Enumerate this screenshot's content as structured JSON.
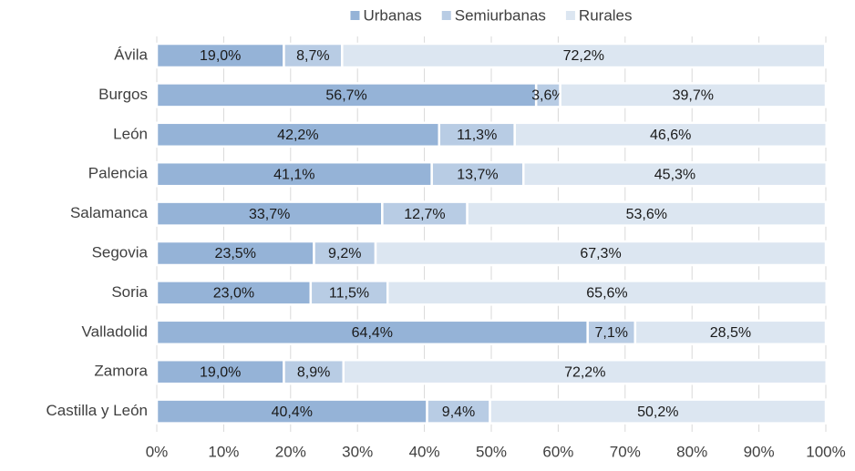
{
  "chart_data": {
    "type": "stacked-bar-horizontal",
    "categories": [
      "Ávila",
      "Burgos",
      "León",
      "Palencia",
      "Salamanca",
      "Segovia",
      "Soria",
      "Valladolid",
      "Zamora",
      "Castilla y León"
    ],
    "series": [
      {
        "name": "Urbanas",
        "color": "#95b3d7",
        "values": [
          19.0,
          56.7,
          42.2,
          41.1,
          33.7,
          23.5,
          23.0,
          64.4,
          19.0,
          40.4
        ],
        "value_labels": [
          "19,0%",
          "56,7%",
          "42,2%",
          "41,1%",
          "33,7%",
          "23,5%",
          "23,0%",
          "64,4%",
          "19,0%",
          "40,4%"
        ]
      },
      {
        "name": "Semiurbanas",
        "color": "#b8cce4",
        "values": [
          8.7,
          3.6,
          11.3,
          13.7,
          12.7,
          9.2,
          11.5,
          7.1,
          8.9,
          9.4
        ],
        "value_labels": [
          "8,7%",
          "3,6%",
          "11,3%",
          "13,7%",
          "12,7%",
          "9,2%",
          "11,5%",
          "7,1%",
          "8,9%",
          "9,4%"
        ]
      },
      {
        "name": "Rurales",
        "color": "#dce6f1",
        "values": [
          72.2,
          39.7,
          46.6,
          45.3,
          53.6,
          67.3,
          65.6,
          28.5,
          72.2,
          50.2
        ],
        "value_labels": [
          "72,2%",
          "39,7%",
          "46,6%",
          "45,3%",
          "53,6%",
          "67,3%",
          "65,6%",
          "28,5%",
          "72,2%",
          "50,2%"
        ]
      }
    ],
    "xlim": [
      0,
      100
    ],
    "xticks": [
      {
        "value": 0,
        "label": "0%"
      },
      {
        "value": 10,
        "label": "10%"
      },
      {
        "value": 20,
        "label": "20%"
      },
      {
        "value": 30,
        "label": "30%"
      },
      {
        "value": 40,
        "label": "40%"
      },
      {
        "value": 50,
        "label": "50%"
      },
      {
        "value": 60,
        "label": "60%"
      },
      {
        "value": 70,
        "label": "70%"
      },
      {
        "value": 80,
        "label": "80%"
      },
      {
        "value": 90,
        "label": "90%"
      },
      {
        "value": 100,
        "label": "100%"
      }
    ],
    "grid": true,
    "legend": "top"
  }
}
